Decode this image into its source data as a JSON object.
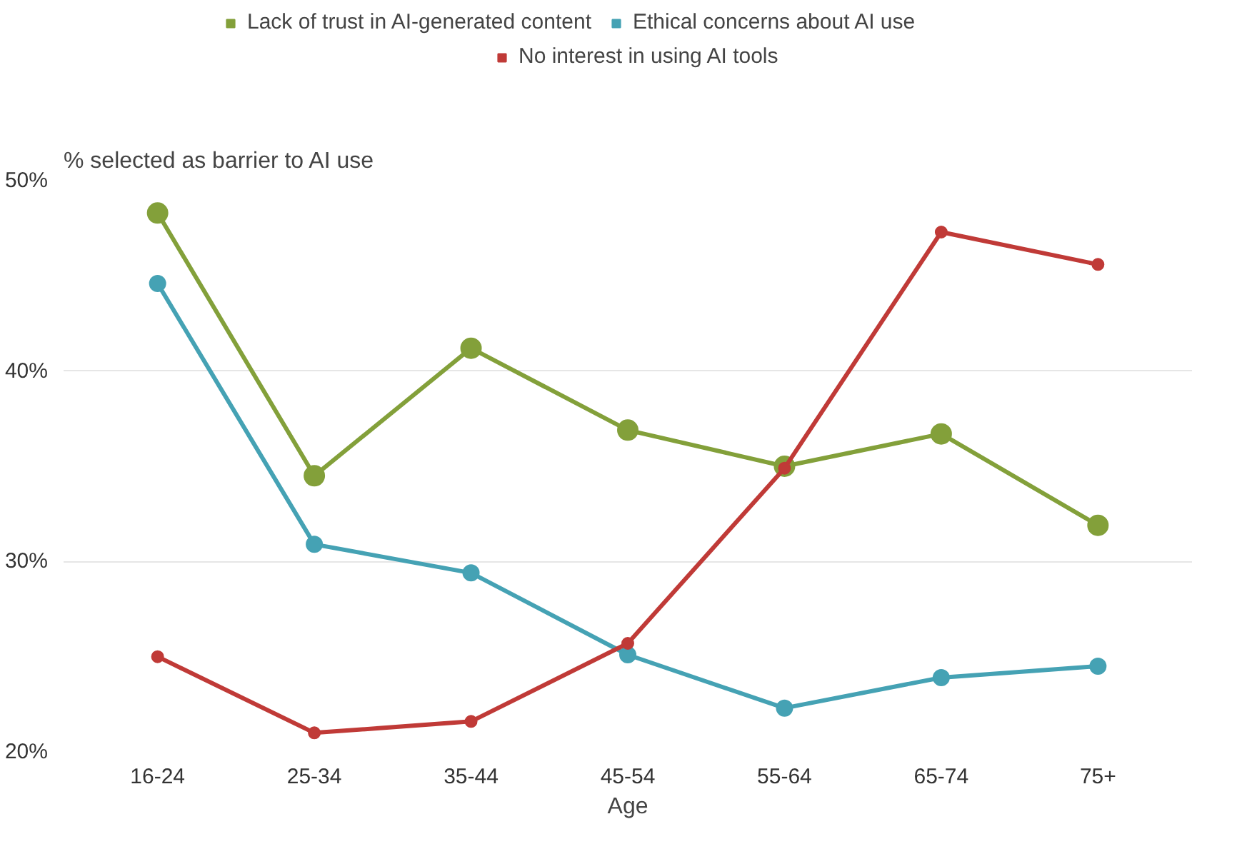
{
  "chart_data": {
    "type": "line",
    "xlabel": "Age",
    "ylabel": "% selected as barrier to AI use",
    "categories": [
      "16-24",
      "25-34",
      "35-44",
      "45-54",
      "55-64",
      "65-74",
      "75+"
    ],
    "series": [
      {
        "name": "Lack of trust in AI-generated content",
        "color": "#83a03a",
        "values": [
          48.3,
          34.5,
          41.2,
          36.9,
          35.0,
          36.7,
          31.9
        ]
      },
      {
        "name": "Ethical concerns about AI use",
        "color": "#45a2b4",
        "values": [
          44.6,
          30.9,
          29.4,
          25.1,
          22.3,
          23.9,
          24.5
        ]
      },
      {
        "name": "No interest in using AI tools",
        "color": "#c03a37",
        "values": [
          25.0,
          21.0,
          21.6,
          25.7,
          34.9,
          47.3,
          45.6
        ]
      }
    ],
    "ylim": [
      20,
      50
    ],
    "yticks": [
      {
        "value": 20,
        "label": "20%"
      },
      {
        "value": 30,
        "label": "30%"
      },
      {
        "value": 40,
        "label": "40%"
      },
      {
        "value": 50,
        "label": "50%"
      }
    ],
    "grid": "y",
    "legend": "top",
    "marker": "circle",
    "line_style": "solid"
  }
}
